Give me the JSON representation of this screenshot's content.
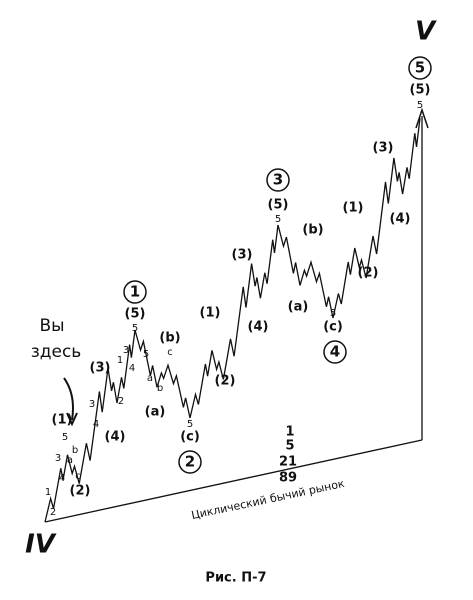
{
  "labels": [
    "V",
    "5",
    "(5)",
    "5",
    "3",
    "(5)",
    "5",
    "1",
    "(5)",
    "5",
    "2",
    "(c)",
    "5",
    "4",
    "(c)",
    "5",
    "(a)",
    "(b)",
    "(a)",
    "(b)",
    "(1)",
    "(2)",
    "(3)",
    "(4)",
    "(1)",
    "(2)",
    "(3)",
    "(4)",
    "(1)",
    "(2)",
    "(3)",
    "(4)",
    "1",
    "2",
    "3",
    "4",
    "5",
    "a",
    "b",
    "c",
    "3",
    "4",
    "1",
    "2",
    "3",
    "4",
    "5",
    "a",
    "b",
    "c",
    "IV"
  ],
  "annotation": [
    "Вы",
    "здесь"
  ],
  "fibonacci": [
    "1",
    "5",
    "21",
    "89"
  ],
  "channel_label": "Циклический бычий рынок",
  "caption": "Рис. П-7"
}
